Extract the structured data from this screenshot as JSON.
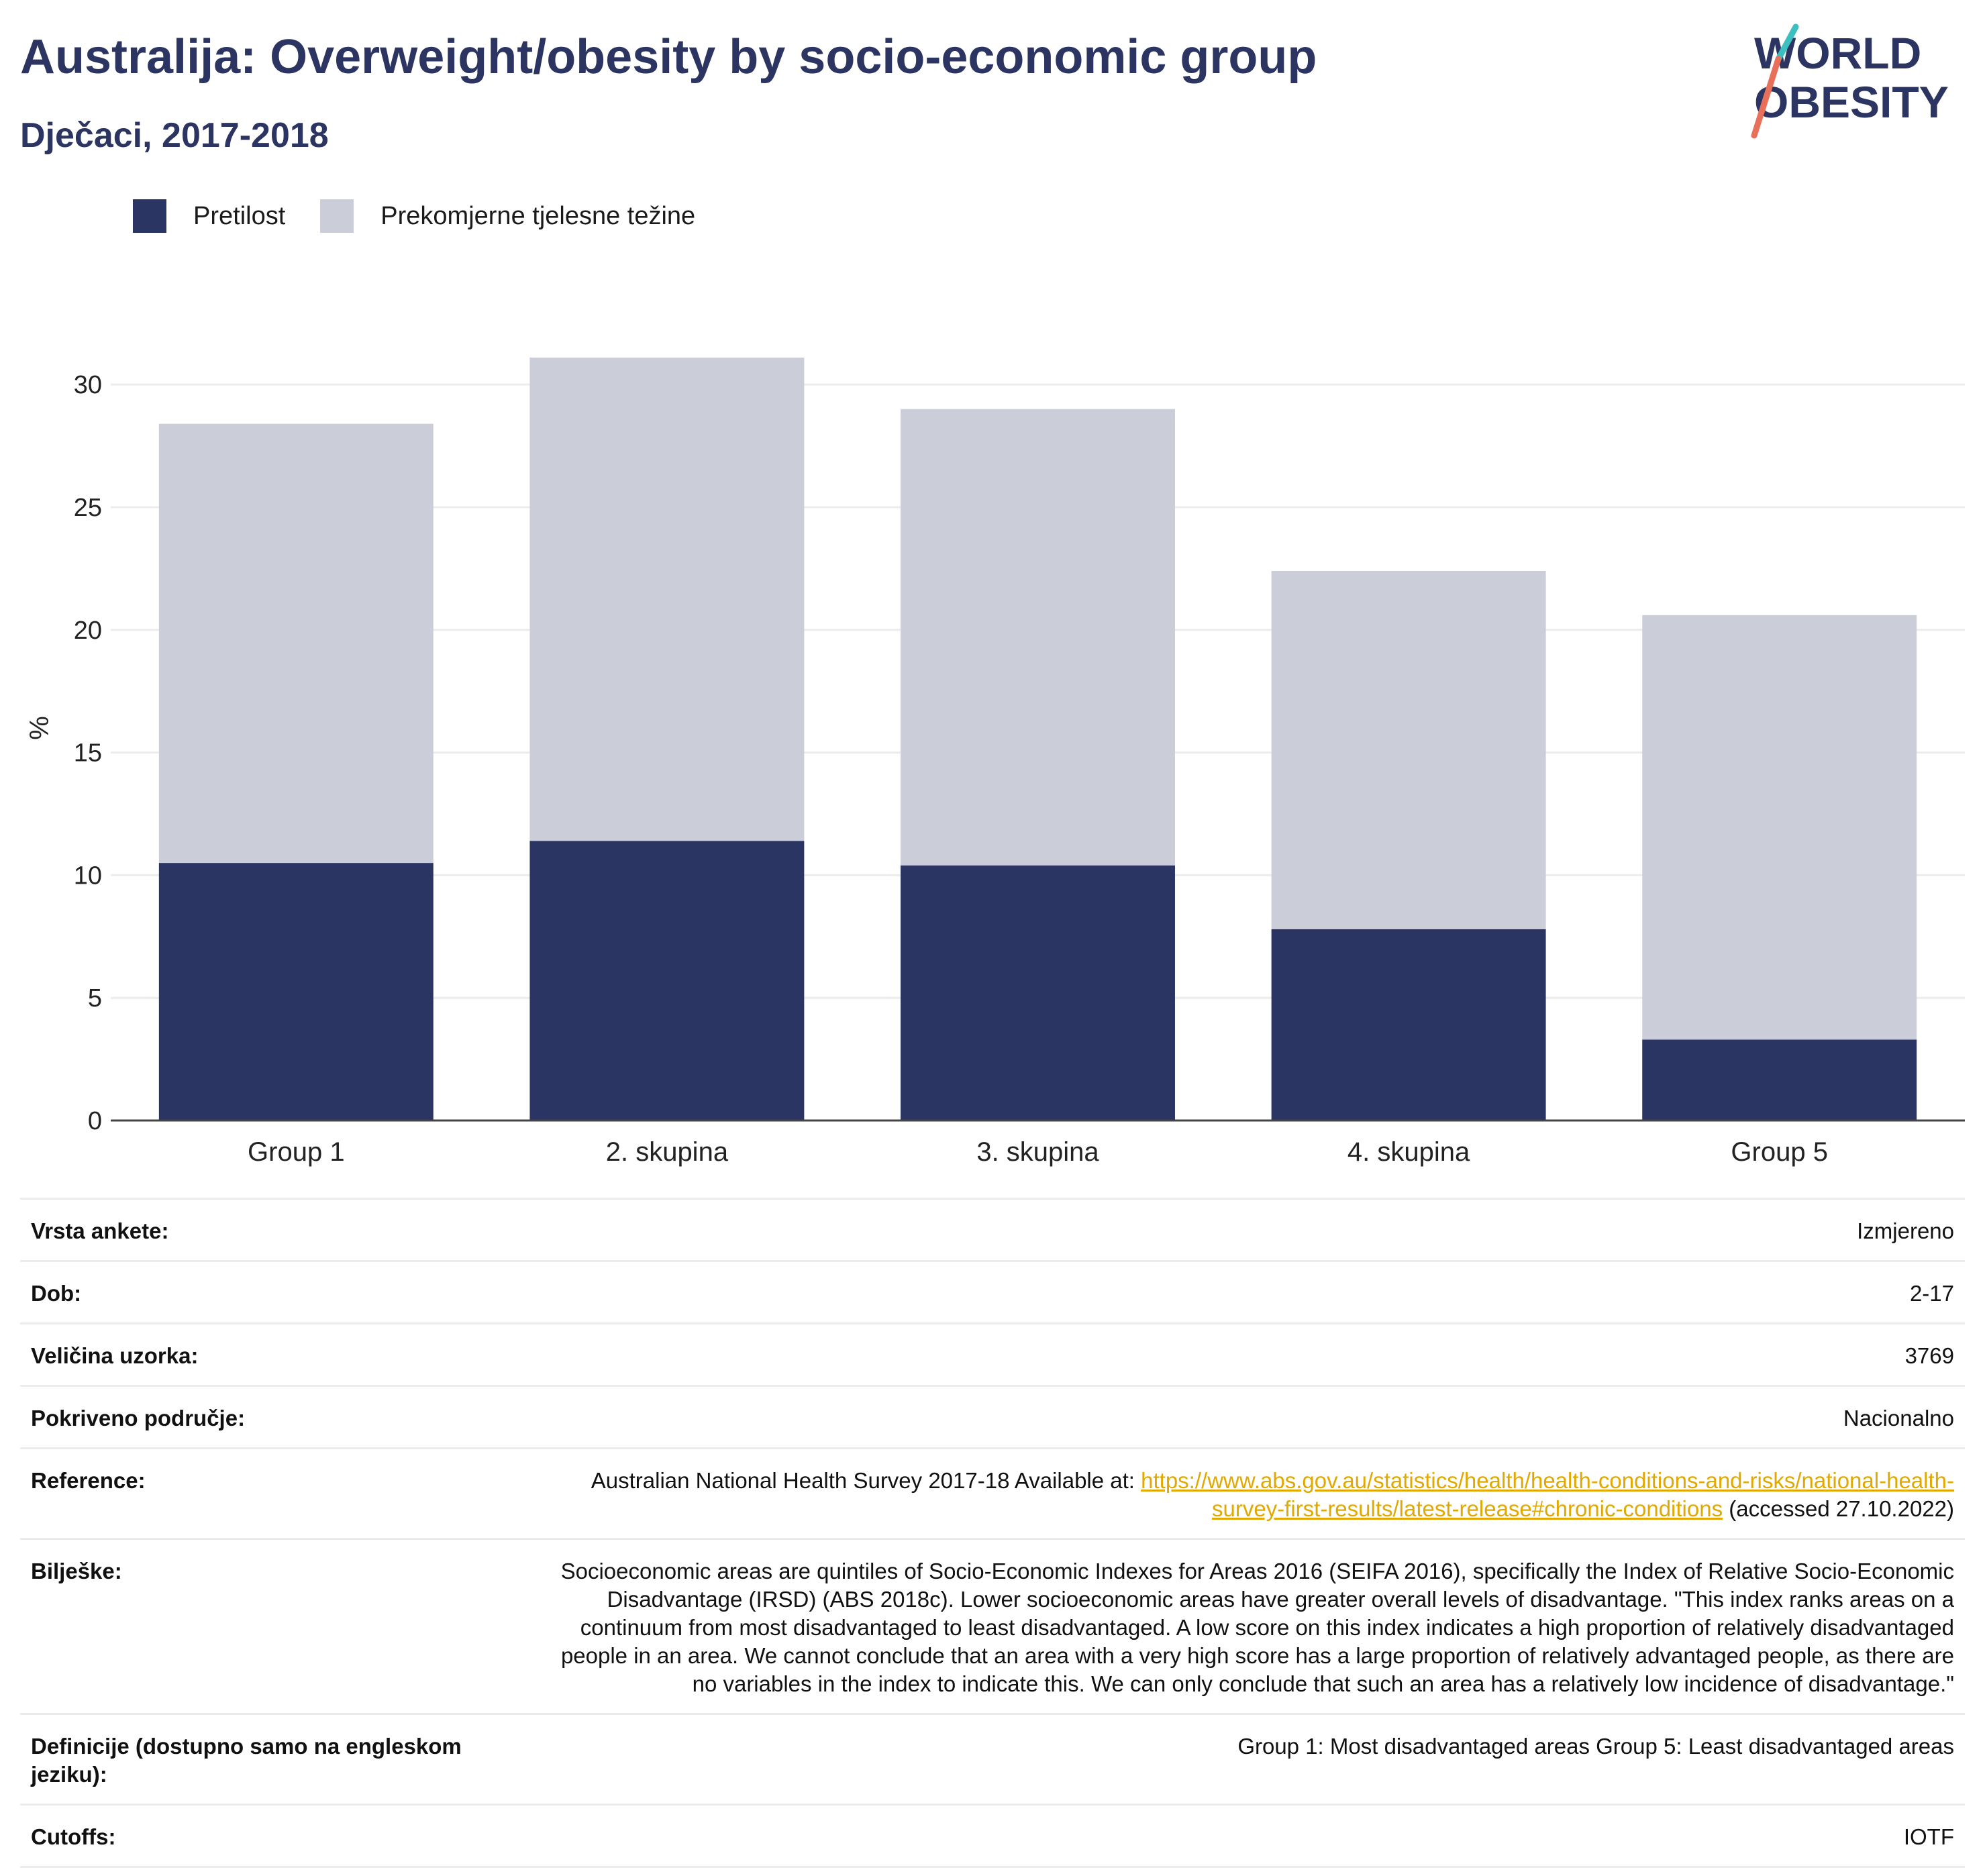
{
  "title": "Australija: Overweight/obesity by socio-economic group",
  "subtitle": "Dječaci, 2017-2018",
  "logo": {
    "line1": "WORLD",
    "line2": "OBESITY"
  },
  "colors": {
    "obesity": "#2b3563",
    "overweight": "#cbcdd9",
    "title": "#2c3561",
    "link": "#e0a800"
  },
  "chart_data": {
    "type": "bar",
    "stacked": true,
    "categories": [
      "Group 1",
      "2. skupina",
      "3. skupina",
      "4. skupina",
      "Group 5"
    ],
    "series": [
      {
        "name": "Pretilost",
        "values": [
          10.5,
          11.4,
          10.4,
          7.8,
          3.3
        ]
      },
      {
        "name": "Prekomjerne tjelesne težine",
        "values": [
          17.9,
          19.7,
          18.6,
          14.6,
          17.3
        ]
      }
    ],
    "ylabel": "%",
    "xlabel": "",
    "ylim": [
      0,
      32
    ],
    "yticks": [
      0,
      5,
      10,
      15,
      20,
      25,
      30
    ],
    "grid": true,
    "legend_position": "top-left"
  },
  "meta": [
    {
      "label": "Vrsta ankete:",
      "value": "Izmjereno"
    },
    {
      "label": "Dob:",
      "value": "2-17"
    },
    {
      "label": "Veličina uzorka:",
      "value": "3769"
    },
    {
      "label": "Pokriveno područje:",
      "value": "Nacionalno"
    },
    {
      "label": "Reference:",
      "prefix": "Australian National Health Survey 2017-18 Available at: ",
      "link": "https://www.abs.gov.au/statistics/health/health-conditions-and-risks/national-health-survey-first-results/latest-release#chronic-conditions",
      "suffix": " (accessed 27.10.2022)"
    },
    {
      "label": "Bilješke:",
      "value": "Socioeconomic areas are quintiles of Socio-Economic Indexes for Areas 2016 (SEIFA 2016), specifically the Index of Relative Socio-Economic Disadvantage (IRSD) (ABS 2018c). Lower socioeconomic areas have greater overall levels of disadvantage. \"This index ranks areas on a continuum from most disadvantaged to least disadvantaged. A low score on this index indicates a high proportion of relatively disadvantaged people in an area. We cannot conclude that an area with a very high score has a large proportion of relatively advantaged people, as there are no variables in the index to indicate this. We can only conclude that such an area has a relatively low incidence of disadvantage.\""
    },
    {
      "label": "Definicije (dostupno samo na engleskom jeziku):",
      "value": "Group 1: Most disadvantaged areas Group 5: Least disadvantaged areas"
    },
    {
      "label": "Cutoffs:",
      "value": "IOTF"
    }
  ]
}
